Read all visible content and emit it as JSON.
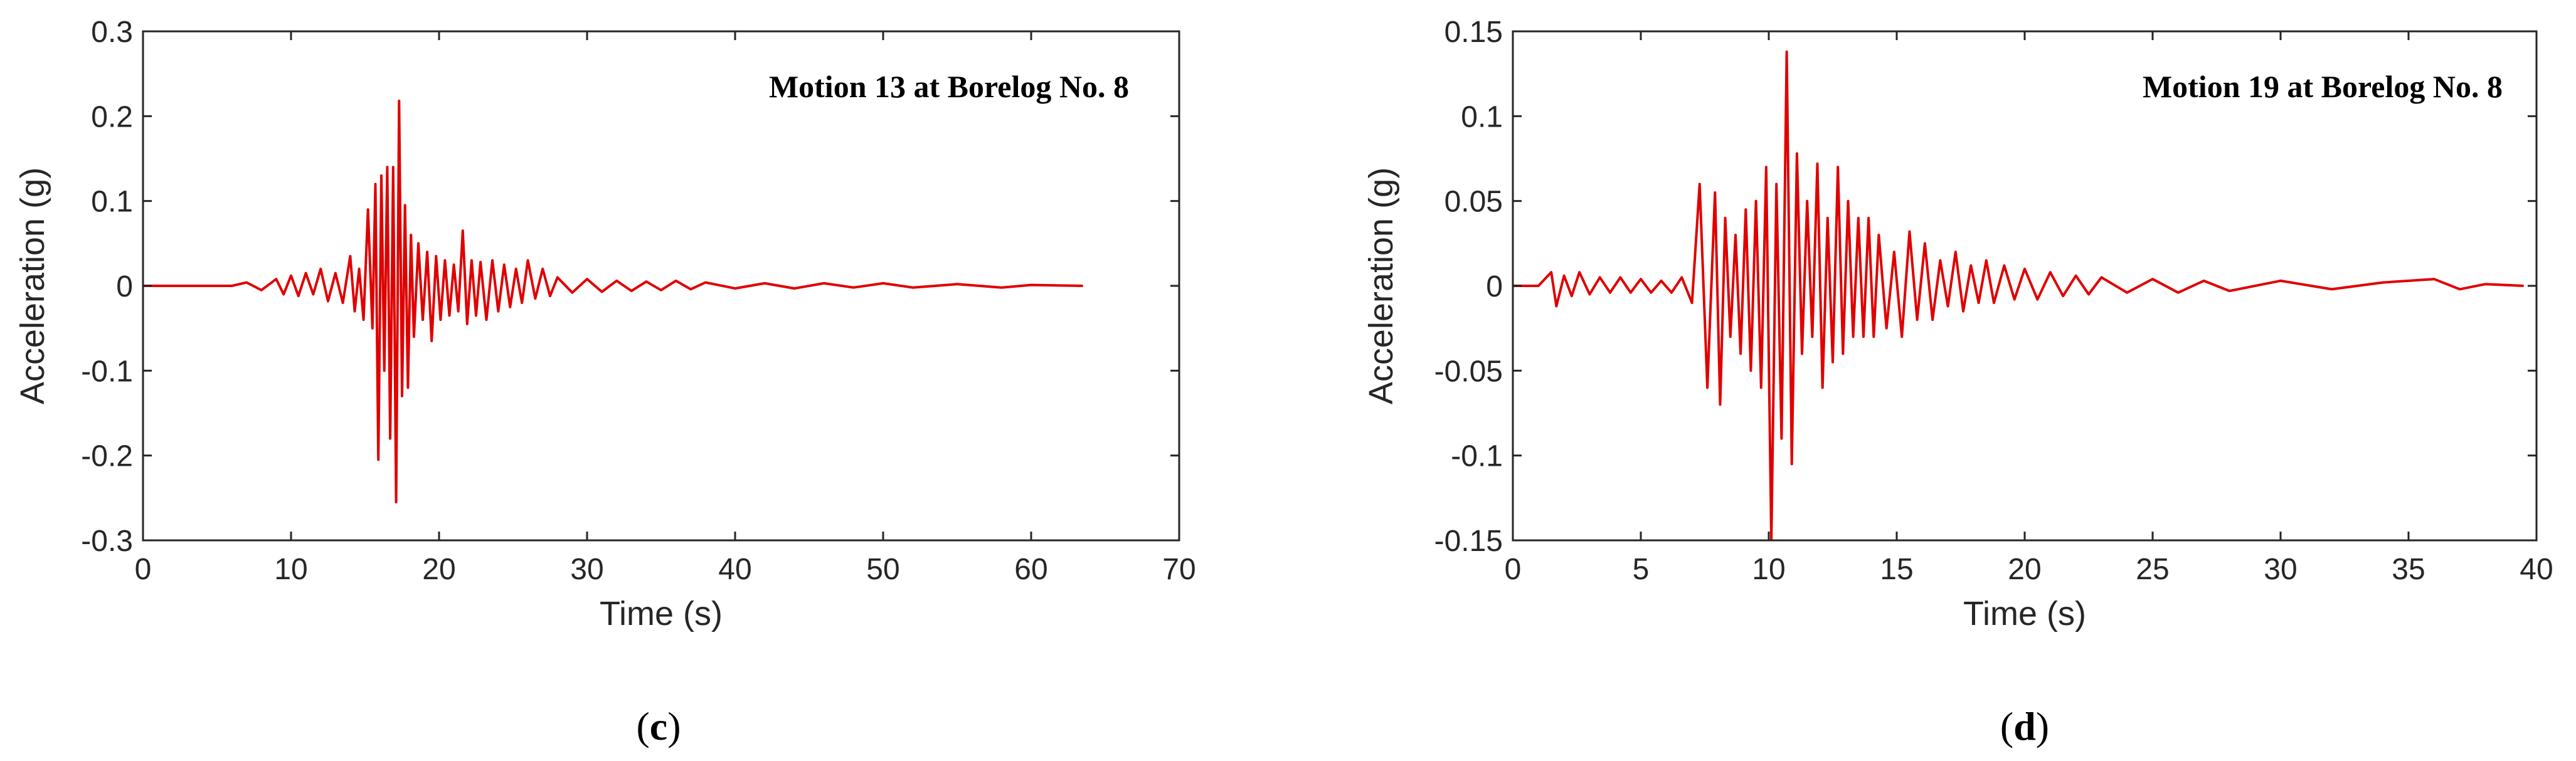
{
  "chart_data": [
    {
      "type": "line",
      "panel_label": "c",
      "annotation": "Motion 13 at Borelog No. 8",
      "xlabel": "Time (s)",
      "ylabel": "Acceleration (g)",
      "xlim": [
        0,
        70
      ],
      "ylim": [
        -0.3,
        0.3
      ],
      "x_ticks": [
        0,
        10,
        20,
        30,
        40,
        50,
        60,
        70
      ],
      "y_ticks": [
        -0.3,
        -0.2,
        -0.1,
        0,
        0.1,
        0.2,
        0.3
      ],
      "x_tick_labels": [
        "0",
        "10",
        "20",
        "30",
        "40",
        "50",
        "60",
        "70"
      ],
      "y_tick_labels": [
        "-0.3",
        "-0.2",
        "-0.1",
        "0",
        "0.1",
        "0.2",
        "0.3"
      ],
      "grid": false,
      "line_color": "#e00000",
      "series": [
        {
          "x": [
            0,
            6,
            7,
            8,
            9,
            9.5,
            10,
            10.5,
            11,
            11.5,
            12,
            12.5,
            13,
            13.5,
            14,
            14.3,
            14.6,
            14.9,
            15.2,
            15.5,
            15.7,
            15.9,
            16.1,
            16.3,
            16.5,
            16.7,
            16.9,
            17.1,
            17.3,
            17.5,
            17.7,
            17.9,
            18.1,
            18.3,
            18.6,
            18.9,
            19.2,
            19.5,
            19.8,
            20.1,
            20.4,
            20.7,
            21,
            21.3,
            21.6,
            21.9,
            22.2,
            22.5,
            22.8,
            23.2,
            23.6,
            24,
            24.4,
            24.8,
            25.2,
            25.6,
            26,
            26.5,
            27,
            27.5,
            28,
            29,
            30,
            31,
            32,
            33,
            34,
            35,
            36,
            37,
            38,
            40,
            42,
            44,
            46,
            48,
            50,
            52,
            55,
            58,
            60,
            63.5
          ],
          "y": [
            0,
            0,
            0.004,
            -0.005,
            0.008,
            -0.01,
            0.012,
            -0.012,
            0.015,
            -0.01,
            0.02,
            -0.018,
            0.015,
            -0.02,
            0.035,
            -0.03,
            0.02,
            -0.04,
            0.09,
            -0.05,
            0.12,
            -0.205,
            0.13,
            -0.1,
            0.14,
            -0.18,
            0.14,
            -0.255,
            0.218,
            -0.13,
            0.095,
            -0.12,
            0.06,
            -0.06,
            0.05,
            -0.04,
            0.04,
            -0.065,
            0.035,
            -0.04,
            0.03,
            -0.035,
            0.025,
            -0.03,
            0.065,
            -0.045,
            0.03,
            -0.035,
            0.028,
            -0.04,
            0.03,
            -0.03,
            0.025,
            -0.025,
            0.02,
            -0.02,
            0.03,
            -0.015,
            0.02,
            -0.012,
            0.01,
            -0.008,
            0.008,
            -0.007,
            0.006,
            -0.006,
            0.005,
            -0.005,
            0.006,
            -0.004,
            0.004,
            -0.003,
            0.003,
            -0.003,
            0.003,
            -0.002,
            0.003,
            -0.002,
            0.002,
            -0.002,
            0.001,
            0
          ]
        }
      ]
    },
    {
      "type": "line",
      "panel_label": "d",
      "annotation": "Motion 19 at Borelog No. 8",
      "xlabel": "Time (s)",
      "ylabel": "Acceleration (g)",
      "xlim": [
        0,
        40
      ],
      "ylim": [
        -0.15,
        0.15
      ],
      "x_ticks": [
        0,
        5,
        10,
        15,
        20,
        25,
        30,
        35,
        40
      ],
      "y_ticks": [
        -0.15,
        -0.1,
        -0.05,
        0,
        0.05,
        0.1,
        0.15
      ],
      "x_tick_labels": [
        "0",
        "5",
        "10",
        "15",
        "20",
        "25",
        "30",
        "35",
        "40"
      ],
      "y_tick_labels": [
        "-0.15",
        "-0.1",
        "-0.05",
        "0",
        "0.05",
        "0.1",
        "0.15"
      ],
      "grid": false,
      "line_color": "#e00000",
      "series": [
        {
          "x": [
            0,
            1,
            1.5,
            1.7,
            2,
            2.3,
            2.6,
            3,
            3.4,
            3.8,
            4.2,
            4.6,
            5,
            5.4,
            5.8,
            6.2,
            6.6,
            7,
            7.3,
            7.6,
            7.9,
            8.1,
            8.3,
            8.5,
            8.7,
            8.9,
            9.1,
            9.3,
            9.5,
            9.7,
            9.9,
            10.1,
            10.3,
            10.5,
            10.7,
            10.9,
            11.1,
            11.3,
            11.5,
            11.7,
            11.9,
            12.1,
            12.3,
            12.5,
            12.7,
            12.9,
            13.1,
            13.3,
            13.5,
            13.7,
            13.9,
            14.1,
            14.3,
            14.6,
            14.9,
            15.2,
            15.5,
            15.8,
            16.1,
            16.4,
            16.7,
            17,
            17.3,
            17.6,
            17.9,
            18.2,
            18.5,
            18.8,
            19.2,
            19.6,
            20,
            20.5,
            21,
            21.5,
            22,
            22.5,
            23,
            24,
            25,
            26,
            27,
            28,
            30,
            32,
            34,
            36,
            37,
            38,
            39.5
          ],
          "y": [
            0,
            0,
            0.008,
            -0.012,
            0.006,
            -0.006,
            0.008,
            -0.005,
            0.005,
            -0.004,
            0.005,
            -0.004,
            0.004,
            -0.004,
            0.003,
            -0.004,
            0.005,
            -0.01,
            0.06,
            -0.06,
            0.055,
            -0.07,
            0.04,
            -0.03,
            0.03,
            -0.04,
            0.045,
            -0.05,
            0.05,
            -0.06,
            0.07,
            -0.15,
            0.06,
            -0.09,
            0.138,
            -0.105,
            0.078,
            -0.04,
            0.05,
            -0.03,
            0.072,
            -0.06,
            0.04,
            -0.045,
            0.07,
            -0.04,
            0.05,
            -0.03,
            0.04,
            -0.03,
            0.04,
            -0.03,
            0.03,
            -0.025,
            0.02,
            -0.03,
            0.032,
            -0.02,
            0.025,
            -0.02,
            0.015,
            -0.012,
            0.02,
            -0.015,
            0.012,
            -0.01,
            0.015,
            -0.01,
            0.012,
            -0.008,
            0.01,
            -0.008,
            0.008,
            -0.006,
            0.006,
            -0.005,
            0.005,
            -0.004,
            0.004,
            -0.004,
            0.003,
            -0.003,
            0.003,
            -0.002,
            0.002,
            0.004,
            -0.002,
            0.001,
            0
          ]
        }
      ]
    }
  ]
}
